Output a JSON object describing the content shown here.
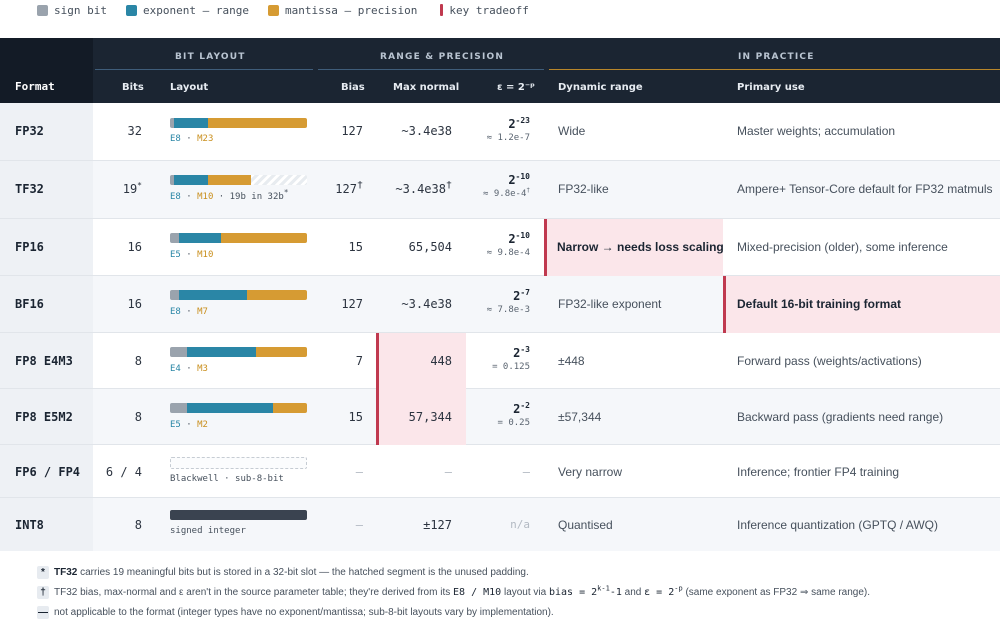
{
  "legend": [
    {
      "label": "sign bit",
      "color": "#9aa3ad",
      "icon": "square-swatch"
    },
    {
      "label": "exponent — range",
      "color": "#2a86a6",
      "icon": "square-swatch"
    },
    {
      "label": "mantissa — precision",
      "color": "#d69b33",
      "icon": "square-swatch"
    },
    {
      "label": "key tradeoff",
      "color": "#c0394f",
      "icon": "bar-swatch"
    }
  ],
  "header": {
    "format": "Format",
    "groups": {
      "bit_layout": "BIT LAYOUT",
      "range_precision": "RANGE & PRECISION",
      "in_practice": "IN PRACTICE"
    },
    "cols": {
      "bits": "Bits",
      "layout": "Layout",
      "bias": "Bias",
      "max_normal": "Max normal",
      "eps": "ε = 2⁻ᵖ",
      "dynamic_range": "Dynamic range",
      "primary_use": "Primary use"
    }
  },
  "rows": [
    {
      "format": "FP32",
      "bits": "32",
      "bits_mark": "",
      "layout_label_e": "E8",
      "layout_label_m": "M23",
      "layout_extra": "",
      "bias": "127",
      "bias_mark": "",
      "max_normal": "~3.4e38",
      "max_mark": "",
      "eps_exp": "-23",
      "eps_approx": "≈ 1.2e-7",
      "eps_mark": "",
      "dynamic_range": "Wide",
      "primary_use": "Master weights; accumulation"
    },
    {
      "format": "TF32",
      "bits": "19",
      "bits_mark": "*",
      "layout_label_e": "E8",
      "layout_label_m": "M10",
      "layout_extra": " · 19b in 32b",
      "layout_extra_mark": "*",
      "bias": "127",
      "bias_mark": "†",
      "max_normal": "~3.4e38",
      "max_mark": "†",
      "eps_exp": "-10",
      "eps_approx": "≈ 9.8e-4",
      "eps_mark": "†",
      "dynamic_range": "FP32-like",
      "primary_use": "Ampere+ Tensor-Core default for FP32 matmuls"
    },
    {
      "format": "FP16",
      "bits": "16",
      "bits_mark": "",
      "layout_label_e": "E5",
      "layout_label_m": "M10",
      "layout_extra": "",
      "bias": "15",
      "bias_mark": "",
      "max_normal": "65,504",
      "max_mark": "",
      "eps_exp": "-10",
      "eps_approx": "≈ 9.8e-4",
      "eps_mark": "",
      "dynamic_range": "Narrow → needs loss scaling",
      "primary_use": "Mixed-precision (older), some inference"
    },
    {
      "format": "BF16",
      "bits": "16",
      "bits_mark": "",
      "layout_label_e": "E8",
      "layout_label_m": "M7",
      "layout_extra": "",
      "bias": "127",
      "bias_mark": "",
      "max_normal": "~3.4e38",
      "max_mark": "",
      "eps_exp": "-7",
      "eps_approx": "≈ 7.8e-3",
      "eps_mark": "",
      "dynamic_range": "FP32-like exponent",
      "primary_use": "Default 16-bit training format"
    },
    {
      "format": "FP8 E4M3",
      "bits": "8",
      "bits_mark": "",
      "layout_label_e": "E4",
      "layout_label_m": "M3",
      "layout_extra": "",
      "bias": "7",
      "bias_mark": "",
      "max_normal": "448",
      "max_mark": "",
      "eps_exp": "-3",
      "eps_approx": "= 0.125",
      "eps_mark": "",
      "dynamic_range": "±448",
      "primary_use": "Forward pass (weights/activations)"
    },
    {
      "format": "FP8 E5M2",
      "bits": "8",
      "bits_mark": "",
      "layout_label_e": "E5",
      "layout_label_m": "M2",
      "layout_extra": "",
      "bias": "15",
      "bias_mark": "",
      "max_normal": "57,344",
      "max_mark": "",
      "eps_exp": "-2",
      "eps_approx": "= 0.25",
      "eps_mark": "",
      "dynamic_range": "±57,344",
      "primary_use": "Backward pass (gradients need range)"
    },
    {
      "format": "FP6 / FP4",
      "bits": "6 / 4",
      "bits_mark": "",
      "layout_text": "Blackwell · sub-8-bit",
      "bias": "—",
      "max_normal": "—",
      "eps_na": "—",
      "dynamic_range": "Very narrow",
      "primary_use": "Inference; frontier FP4 training"
    },
    {
      "format": "INT8",
      "bits": "8",
      "bits_mark": "",
      "layout_text": "signed integer",
      "bias": "—",
      "max_normal": "±127",
      "eps_na": "n/a",
      "dynamic_range": "Quantised",
      "primary_use": "Inference quantization (GPTQ / AWQ)"
    }
  ],
  "eps_base": "2",
  "footnotes": {
    "star": {
      "mark": "*",
      "bold": "TF32",
      "text": " carries 19 meaningful bits but is stored in a 32-bit slot — the hatched segment is the unused padding."
    },
    "dagger": {
      "mark": "†",
      "text1": "TF32 bias, max-normal and ε aren't in the source parameter table; they're derived from its ",
      "code1": "E8 / M10",
      "text2": " layout via ",
      "code2a": "bias = 2",
      "code2sup": "k-1",
      "code2b": "-1",
      "text3": " and ",
      "code3a": "ε = 2",
      "code3sup": "-p",
      "text4": " (same exponent as FP32 ⇒ same range)."
    },
    "dash": {
      "mark": "—",
      "text": "not applicable to the format (integer types have no exponent/mantissa; sub-8-bit layouts vary by implementation)."
    }
  },
  "colors": {
    "sign": "#9aa3ad",
    "exponent": "#2a86a6",
    "mantissa": "#d69b33",
    "key": "#c0394f",
    "int": "#3a4350"
  }
}
